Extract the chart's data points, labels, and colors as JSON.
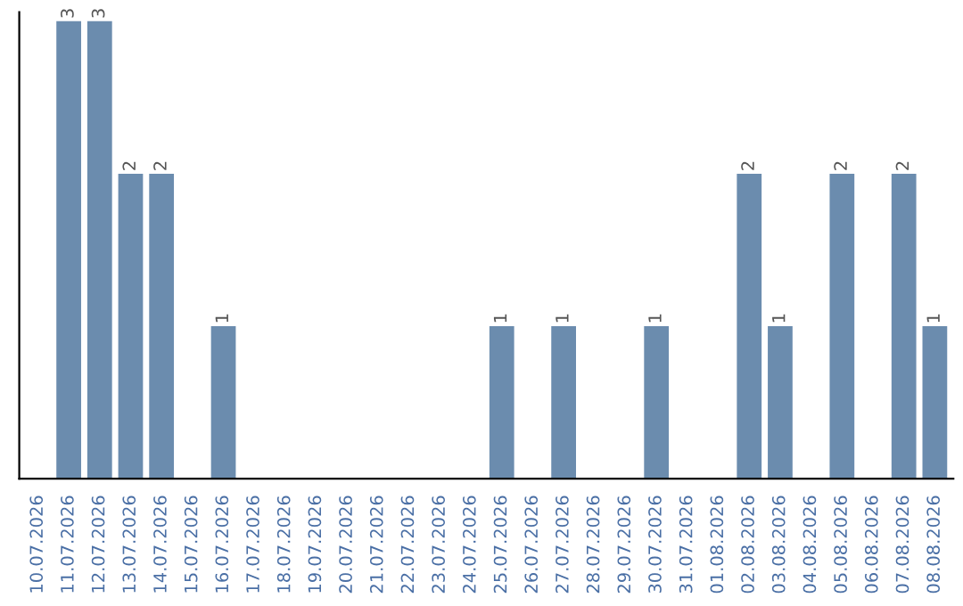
{
  "chart_data": {
    "type": "bar",
    "categories": [
      "10.07.2026",
      "11.07.2026",
      "12.07.2026",
      "13.07.2026",
      "14.07.2026",
      "15.07.2026",
      "16.07.2026",
      "17.07.2026",
      "18.07.2026",
      "19.07.2026",
      "20.07.2026",
      "21.07.2026",
      "22.07.2026",
      "23.07.2026",
      "24.07.2026",
      "25.07.2026",
      "26.07.2026",
      "27.07.2026",
      "28.07.2026",
      "29.07.2026",
      "30.07.2026",
      "31.07.2026",
      "01.08.2026",
      "02.08.2026",
      "03.08.2026",
      "04.08.2026",
      "05.08.2026",
      "06.08.2026",
      "07.08.2026",
      "08.08.2026"
    ],
    "values": [
      null,
      3,
      3,
      2,
      2,
      null,
      1,
      null,
      null,
      null,
      null,
      null,
      null,
      null,
      null,
      1,
      null,
      1,
      null,
      null,
      1,
      null,
      null,
      2,
      1,
      null,
      2,
      null,
      2,
      1
    ],
    "value_labels": [
      null,
      "3",
      "3",
      "2",
      "2",
      null,
      "1",
      null,
      null,
      null,
      null,
      null,
      null,
      null,
      null,
      "1",
      null,
      "1",
      null,
      null,
      "1",
      null,
      null,
      "2",
      "1",
      null,
      "2",
      null,
      "2",
      "1"
    ],
    "color": "#6b8cae",
    "grid": false,
    "legend": false
  }
}
